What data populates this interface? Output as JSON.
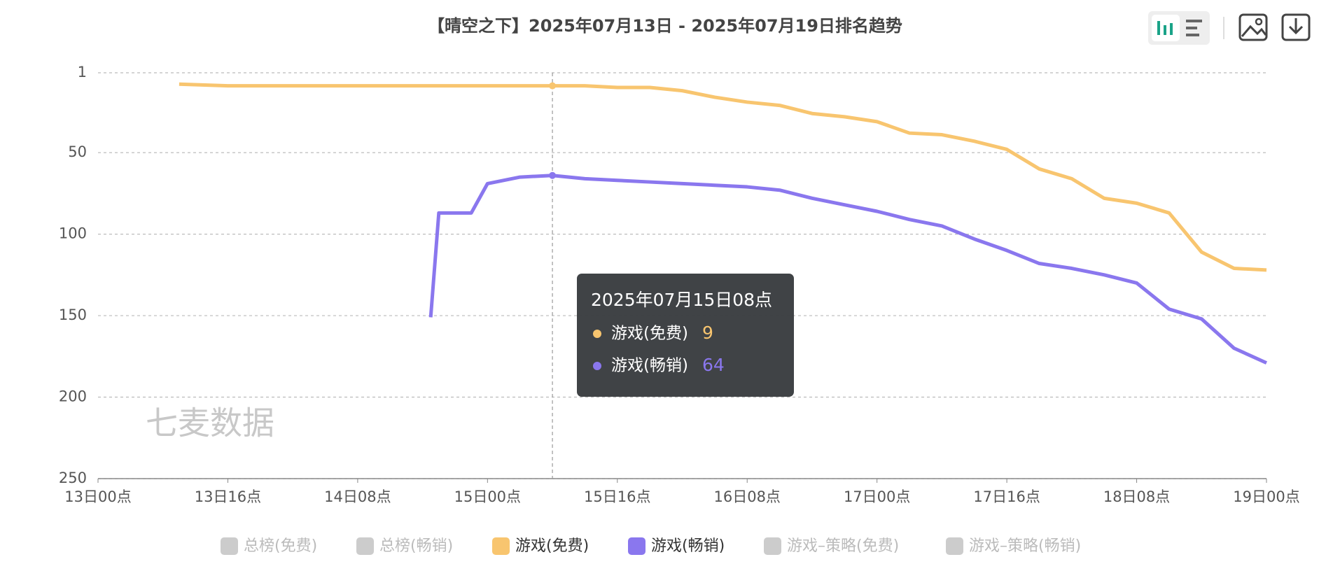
{
  "chart_data": {
    "type": "line",
    "title": "【晴空之下】2025年07月13日 - 2025年07月19日排名趋势",
    "x": [
      10,
      16,
      22,
      28,
      34,
      40,
      41,
      42,
      46,
      48,
      52,
      56,
      60,
      64,
      68,
      72,
      76,
      80,
      84,
      88,
      92,
      96,
      100,
      104,
      108,
      112,
      116,
      120,
      124,
      128,
      132,
      136,
      140,
      144
    ],
    "xlim": [
      0,
      144
    ],
    "xticks": [
      {
        "value": 0,
        "label": "13日00点"
      },
      {
        "value": 16,
        "label": "13日16点"
      },
      {
        "value": 32,
        "label": "14日08点"
      },
      {
        "value": 48,
        "label": "15日00点"
      },
      {
        "value": 64,
        "label": "15日16点"
      },
      {
        "value": 80,
        "label": "16日08点"
      },
      {
        "value": 96,
        "label": "17日00点"
      },
      {
        "value": 112,
        "label": "17日16点"
      },
      {
        "value": 128,
        "label": "18日08点"
      },
      {
        "value": 144,
        "label": "19日00点"
      }
    ],
    "ylim": [
      1,
      250
    ],
    "yticks": [
      1,
      50,
      100,
      150,
      200,
      250
    ],
    "y_inverted": true,
    "grid": true,
    "series": [
      {
        "name": "游戏(免费)",
        "color": "#f8c56f",
        "values": [
          8,
          9,
          9,
          9,
          9,
          9,
          9,
          9,
          9,
          9,
          9,
          9,
          9,
          10,
          10,
          12,
          16,
          19,
          21,
          26,
          28,
          31,
          38,
          39,
          43,
          48,
          60,
          66,
          78,
          81,
          87,
          111,
          121,
          122
        ]
      },
      {
        "name": "游戏(畅销)",
        "color": "#8a77ee",
        "values": [
          null,
          null,
          null,
          null,
          null,
          null,
          151,
          87,
          87,
          69,
          65,
          64,
          66,
          67,
          68,
          69,
          70,
          71,
          73,
          78,
          82,
          86,
          91,
          95,
          103,
          110,
          118,
          121,
          125,
          130,
          146,
          152,
          170,
          179
        ]
      }
    ],
    "legend_inactive": [
      "总榜(免费)",
      "总榜(畅销)",
      "游戏–策略(免费)",
      "游戏–策略(畅销)"
    ],
    "tooltip": {
      "title": "2025年07月15日08点",
      "items": [
        {
          "name": "游戏(免费)",
          "value": 9
        },
        {
          "name": "游戏(畅销)",
          "value": 64
        }
      ]
    },
    "watermark": "七麦数据"
  }
}
